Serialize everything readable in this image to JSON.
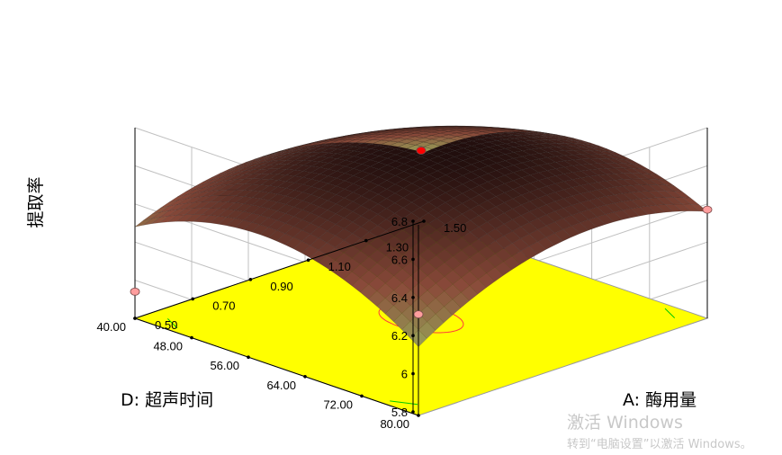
{
  "chart_data": {
    "type": "surface",
    "zlabel": "提取率",
    "xlabel": "A: 酶用量",
    "ylabel": "D: 超声时间",
    "z_ticks": [
      "5.8",
      "6",
      "6.2",
      "6.4",
      "6.6",
      "6.8"
    ],
    "x_ticks": [
      "0.50",
      "0.70",
      "0.90",
      "1.10",
      "1.30",
      "1.50"
    ],
    "y_ticks": [
      "40.00",
      "48.00",
      "56.00",
      "64.00",
      "72.00",
      "80.00"
    ],
    "zlim": [
      5.8,
      6.8
    ],
    "xlim": [
      0.5,
      1.5
    ],
    "ylim": [
      40,
      80
    ],
    "floor_color": "#ffff00",
    "contour_colors": [
      "#00c800",
      "#ff3c3c"
    ],
    "surface_colors": {
      "low": "#a8ff7a",
      "mid": "#8a4a3a",
      "high": "#1a0a0a"
    },
    "design_point_color": "#ff9e9e",
    "design_points": [
      {
        "x": 1.0,
        "y": 60,
        "z": 6.68,
        "color": "#ff0000"
      },
      {
        "x": 1.5,
        "y": 80,
        "z": 6.37
      },
      {
        "x": 0.5,
        "y": 80,
        "z": 6.33
      },
      {
        "x": 0.5,
        "y": 40,
        "z": 5.94
      }
    ]
  },
  "watermark": {
    "title": "激活 Windows",
    "subtitle": "转到“电脑设置”以激活 Windows。"
  }
}
